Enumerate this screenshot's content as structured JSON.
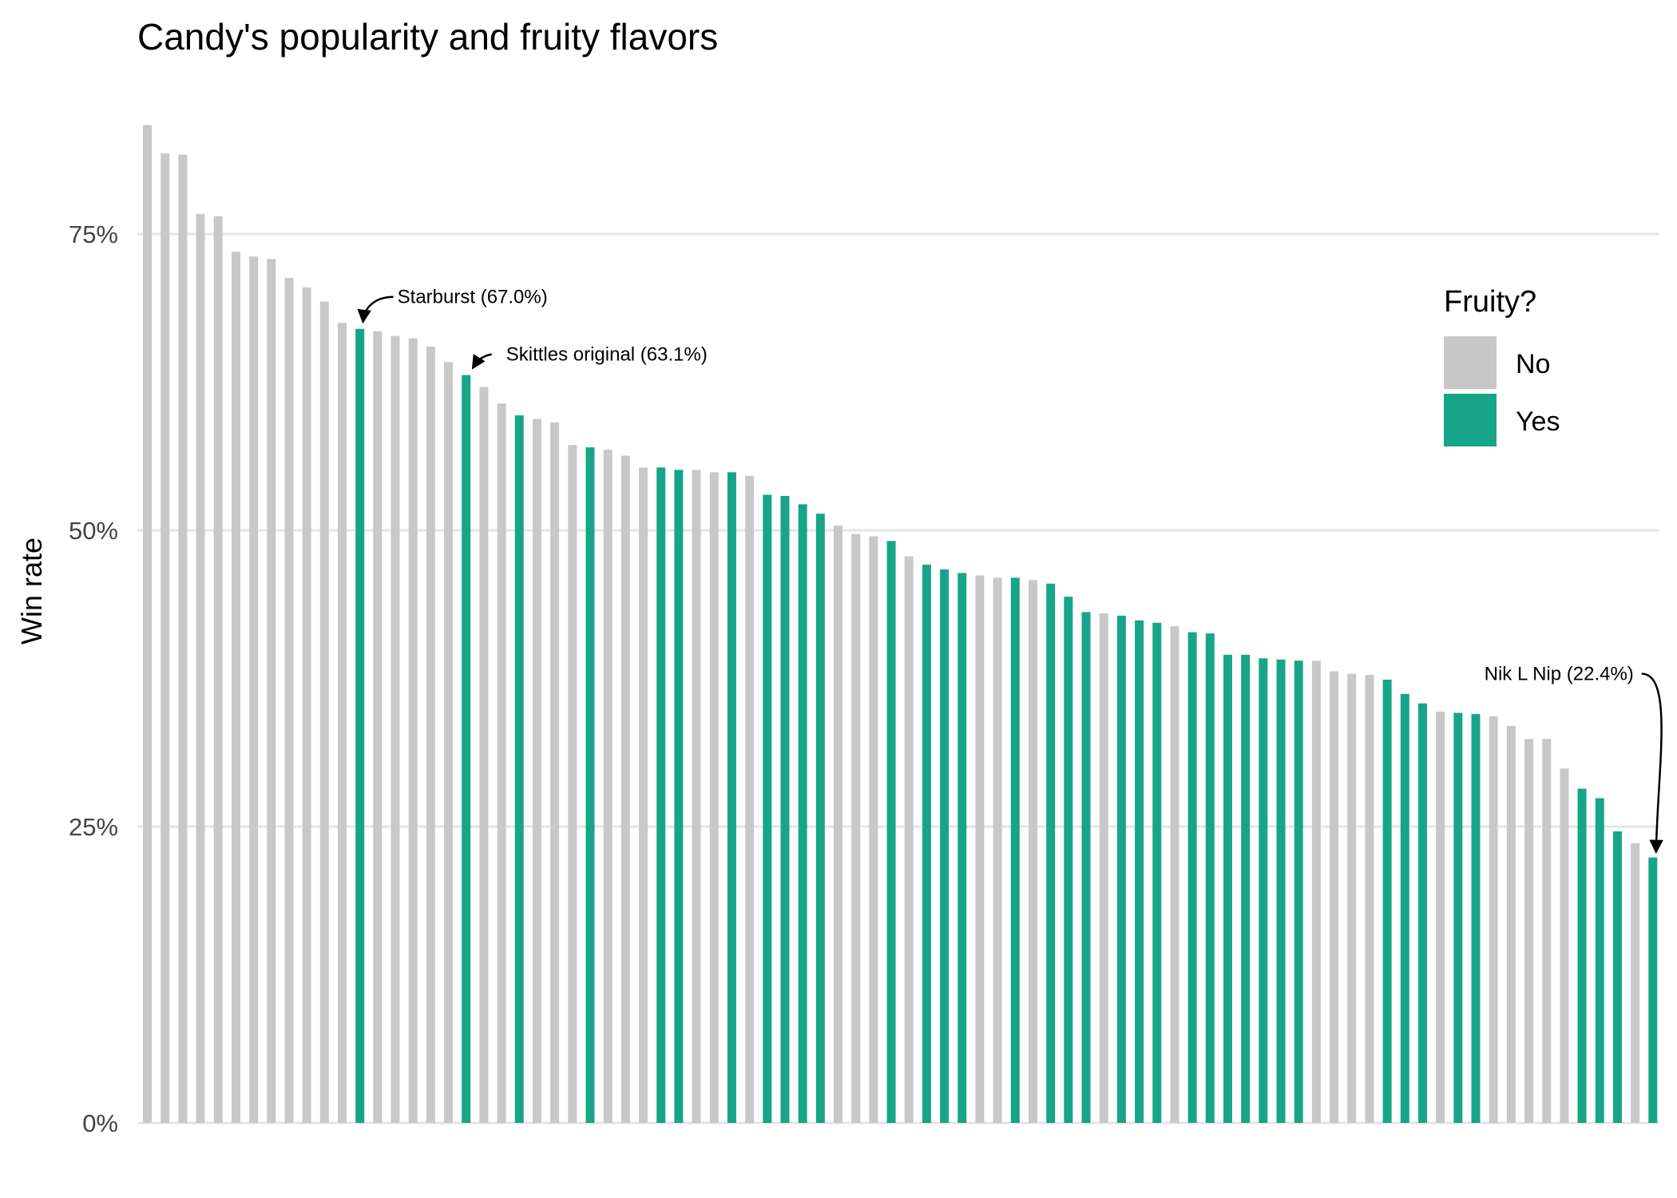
{
  "chart_data": {
    "type": "bar",
    "title": "Candy's popularity and fruity flavors",
    "xlabel": "",
    "ylabel": "Win rate",
    "ylim": [
      0,
      0.85
    ],
    "yticks": [
      0,
      0.25,
      0.5,
      0.75
    ],
    "ytick_labels": [
      "0%",
      "25%",
      "50%",
      "75%"
    ],
    "grid": "horizontal",
    "legend": {
      "title": "Fruity?",
      "placement": "top-right",
      "entries": [
        {
          "label": "No",
          "color": "#c8c8c8"
        },
        {
          "label": "Yes",
          "color": "#17a589"
        }
      ]
    },
    "colors": {
      "No": "#c8c8c8",
      "Yes": "#17a589"
    },
    "bars": [
      {
        "value": 0.842,
        "fruity": "No"
      },
      {
        "value": 0.818,
        "fruity": "No"
      },
      {
        "value": 0.817,
        "fruity": "No"
      },
      {
        "value": 0.767,
        "fruity": "No"
      },
      {
        "value": 0.765,
        "fruity": "No"
      },
      {
        "value": 0.735,
        "fruity": "No"
      },
      {
        "value": 0.731,
        "fruity": "No"
      },
      {
        "value": 0.729,
        "fruity": "No"
      },
      {
        "value": 0.713,
        "fruity": "No"
      },
      {
        "value": 0.705,
        "fruity": "No"
      },
      {
        "value": 0.693,
        "fruity": "No"
      },
      {
        "value": 0.675,
        "fruity": "No"
      },
      {
        "value": 0.67,
        "fruity": "Yes"
      },
      {
        "value": 0.668,
        "fruity": "No"
      },
      {
        "value": 0.664,
        "fruity": "No"
      },
      {
        "value": 0.662,
        "fruity": "No"
      },
      {
        "value": 0.655,
        "fruity": "No"
      },
      {
        "value": 0.642,
        "fruity": "No"
      },
      {
        "value": 0.631,
        "fruity": "Yes"
      },
      {
        "value": 0.621,
        "fruity": "No"
      },
      {
        "value": 0.607,
        "fruity": "No"
      },
      {
        "value": 0.597,
        "fruity": "Yes"
      },
      {
        "value": 0.594,
        "fruity": "No"
      },
      {
        "value": 0.591,
        "fruity": "No"
      },
      {
        "value": 0.572,
        "fruity": "No"
      },
      {
        "value": 0.57,
        "fruity": "Yes"
      },
      {
        "value": 0.568,
        "fruity": "No"
      },
      {
        "value": 0.563,
        "fruity": "No"
      },
      {
        "value": 0.553,
        "fruity": "No"
      },
      {
        "value": 0.553,
        "fruity": "Yes"
      },
      {
        "value": 0.551,
        "fruity": "Yes"
      },
      {
        "value": 0.551,
        "fruity": "No"
      },
      {
        "value": 0.549,
        "fruity": "No"
      },
      {
        "value": 0.549,
        "fruity": "Yes"
      },
      {
        "value": 0.546,
        "fruity": "No"
      },
      {
        "value": 0.53,
        "fruity": "Yes"
      },
      {
        "value": 0.529,
        "fruity": "Yes"
      },
      {
        "value": 0.522,
        "fruity": "Yes"
      },
      {
        "value": 0.514,
        "fruity": "Yes"
      },
      {
        "value": 0.504,
        "fruity": "No"
      },
      {
        "value": 0.497,
        "fruity": "No"
      },
      {
        "value": 0.495,
        "fruity": "No"
      },
      {
        "value": 0.491,
        "fruity": "Yes"
      },
      {
        "value": 0.478,
        "fruity": "No"
      },
      {
        "value": 0.471,
        "fruity": "Yes"
      },
      {
        "value": 0.467,
        "fruity": "Yes"
      },
      {
        "value": 0.464,
        "fruity": "Yes"
      },
      {
        "value": 0.462,
        "fruity": "No"
      },
      {
        "value": 0.46,
        "fruity": "No"
      },
      {
        "value": 0.46,
        "fruity": "Yes"
      },
      {
        "value": 0.458,
        "fruity": "No"
      },
      {
        "value": 0.455,
        "fruity": "Yes"
      },
      {
        "value": 0.444,
        "fruity": "Yes"
      },
      {
        "value": 0.431,
        "fruity": "Yes"
      },
      {
        "value": 0.43,
        "fruity": "No"
      },
      {
        "value": 0.428,
        "fruity": "Yes"
      },
      {
        "value": 0.424,
        "fruity": "Yes"
      },
      {
        "value": 0.422,
        "fruity": "Yes"
      },
      {
        "value": 0.419,
        "fruity": "No"
      },
      {
        "value": 0.414,
        "fruity": "Yes"
      },
      {
        "value": 0.413,
        "fruity": "Yes"
      },
      {
        "value": 0.395,
        "fruity": "Yes"
      },
      {
        "value": 0.395,
        "fruity": "Yes"
      },
      {
        "value": 0.392,
        "fruity": "Yes"
      },
      {
        "value": 0.391,
        "fruity": "Yes"
      },
      {
        "value": 0.39,
        "fruity": "Yes"
      },
      {
        "value": 0.39,
        "fruity": "No"
      },
      {
        "value": 0.381,
        "fruity": "No"
      },
      {
        "value": 0.379,
        "fruity": "No"
      },
      {
        "value": 0.378,
        "fruity": "No"
      },
      {
        "value": 0.374,
        "fruity": "Yes"
      },
      {
        "value": 0.362,
        "fruity": "Yes"
      },
      {
        "value": 0.354,
        "fruity": "Yes"
      },
      {
        "value": 0.347,
        "fruity": "No"
      },
      {
        "value": 0.346,
        "fruity": "Yes"
      },
      {
        "value": 0.345,
        "fruity": "Yes"
      },
      {
        "value": 0.343,
        "fruity": "No"
      },
      {
        "value": 0.335,
        "fruity": "No"
      },
      {
        "value": 0.324,
        "fruity": "No"
      },
      {
        "value": 0.324,
        "fruity": "No"
      },
      {
        "value": 0.299,
        "fruity": "No"
      },
      {
        "value": 0.282,
        "fruity": "Yes"
      },
      {
        "value": 0.274,
        "fruity": "Yes"
      },
      {
        "value": 0.246,
        "fruity": "Yes"
      },
      {
        "value": 0.236,
        "fruity": "No"
      },
      {
        "value": 0.224,
        "fruity": "Yes"
      }
    ],
    "annotations": [
      {
        "bar_index": 12,
        "text": "Starburst (67.0%)"
      },
      {
        "bar_index": 18,
        "text": "Skittles original (63.1%)"
      },
      {
        "bar_index": 85,
        "text": "Nik L Nip (22.4%)"
      }
    ]
  }
}
